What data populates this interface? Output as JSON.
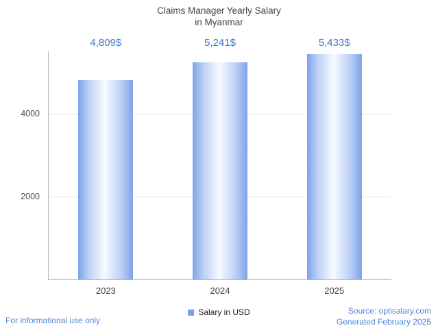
{
  "title": {
    "line1": "Claims Manager Yearly Salary",
    "line2": "in Myanmar"
  },
  "chart_data": {
    "type": "bar",
    "categories": [
      "2023",
      "2024",
      "2025"
    ],
    "values": [
      4809,
      5241,
      5433
    ],
    "value_labels": [
      "4,809$",
      "5,241$",
      "5,433$"
    ],
    "series": [
      {
        "name": "Salary in USD",
        "values": [
          4809,
          5241,
          5433
        ]
      }
    ],
    "title": "Claims Manager Yearly Salary in Myanmar",
    "xlabel": "",
    "ylabel": "",
    "ylim": [
      0,
      5500
    ],
    "yticks": [
      2000,
      4000
    ],
    "grid": true,
    "legend_position": "bottom",
    "bar_color_edge": "#7fa2e9",
    "bar_color_mid": "#bdd1f6",
    "bar_color_center": "#f7faff",
    "value_label_color": "#3e7ac8"
  },
  "legend": {
    "label": "Salary in USD",
    "swatch_color": "#7d9ee8"
  },
  "footer": {
    "left": "For informational use only",
    "source": "Source: optisalary.com",
    "generated": "Generated February 2025"
  }
}
